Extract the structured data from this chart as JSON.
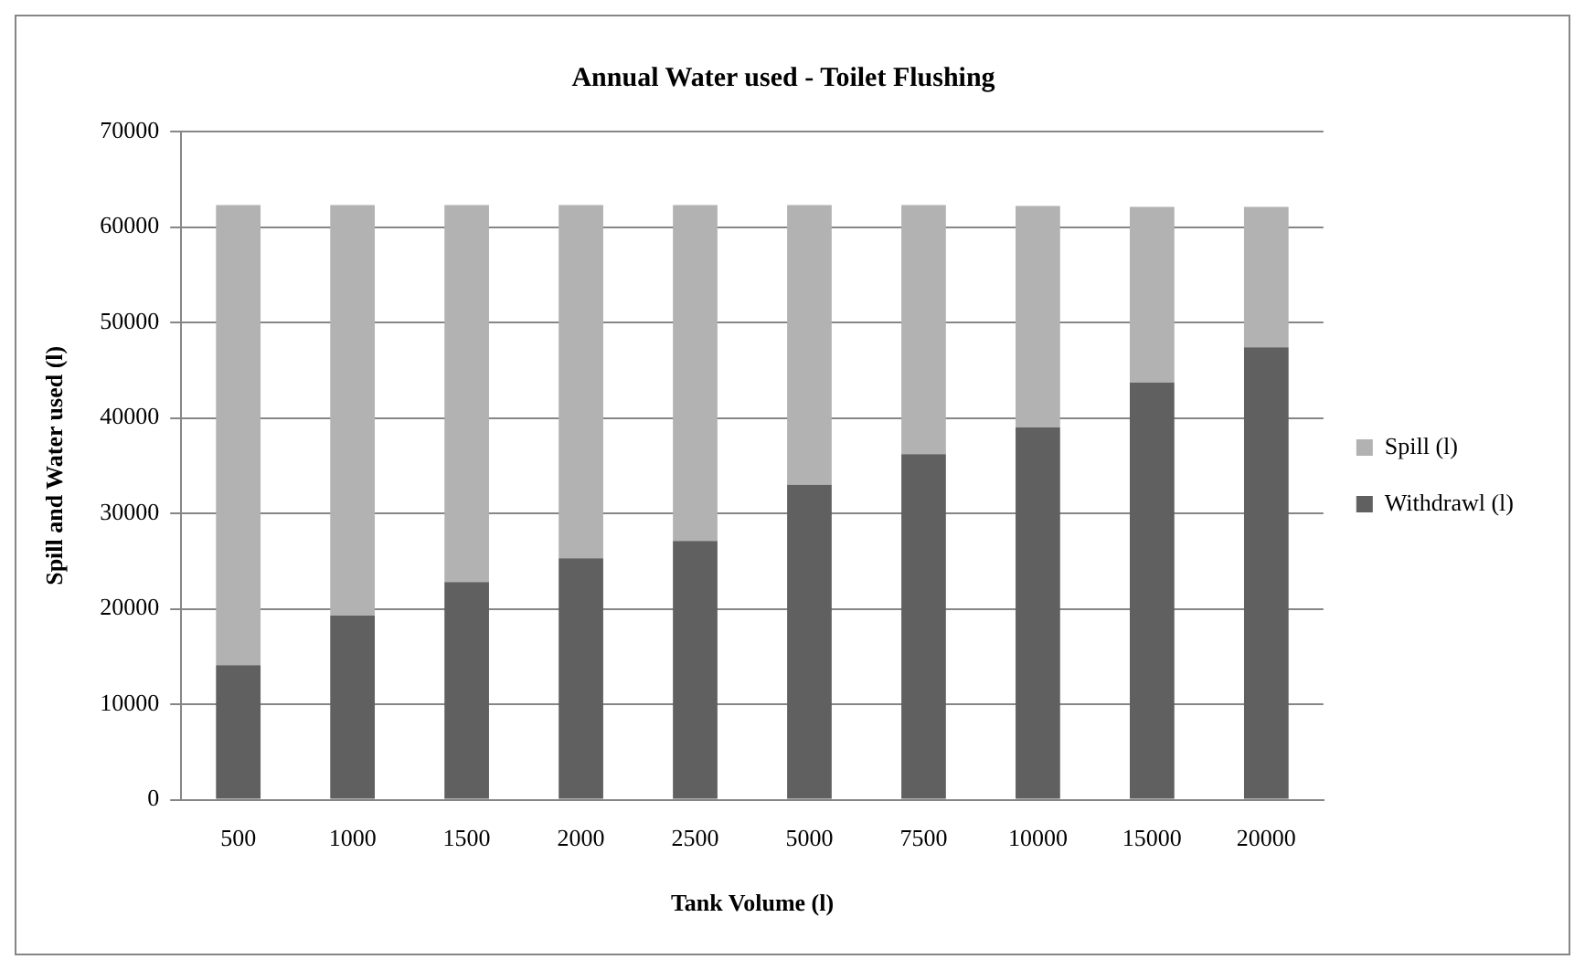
{
  "chart_data": {
    "type": "bar",
    "title": "Annual Water used - Toilet Flushing",
    "xlabel": "Tank Volume (l)",
    "ylabel": "Spill and Water used (l)",
    "categories": [
      "500",
      "1000",
      "1500",
      "2000",
      "2500",
      "5000",
      "7500",
      "10000",
      "15000",
      "20000"
    ],
    "series": [
      {
        "name": "Withdrawl (l)",
        "color": "#606060",
        "values": [
          14100,
          19300,
          22800,
          25300,
          27100,
          33000,
          36200,
          39000,
          43700,
          47400
        ]
      },
      {
        "name": "Spill (l)",
        "color": "#b2b2b2",
        "values": [
          48200,
          43000,
          39500,
          37000,
          35200,
          29300,
          26100,
          23200,
          18400,
          14700
        ]
      }
    ],
    "stacked": true,
    "ylim": [
      0,
      70000
    ],
    "yticks": [
      0,
      10000,
      20000,
      30000,
      40000,
      50000,
      60000,
      70000
    ],
    "grid": "y",
    "legend": "right"
  }
}
